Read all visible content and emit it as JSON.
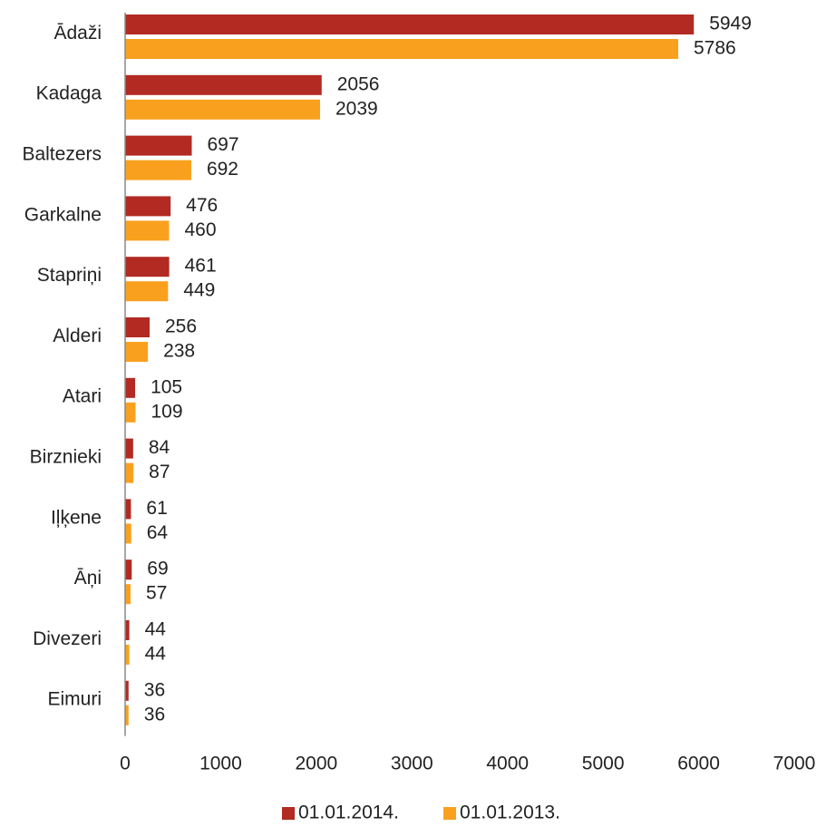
{
  "chart_data": {
    "type": "bar",
    "orientation": "horizontal",
    "categories": [
      "Ādaži",
      "Kadaga",
      "Baltezers",
      "Garkalne",
      "Stapriņi",
      "Alderi",
      "Atari",
      "Birznieki",
      "Iļķene",
      "Āņi",
      "Divezeri",
      "Eimuri"
    ],
    "series": [
      {
        "name": "01.01.2014.",
        "color": "#b22a22",
        "values": [
          5949,
          2056,
          697,
          476,
          461,
          256,
          105,
          84,
          61,
          69,
          44,
          36
        ]
      },
      {
        "name": "01.01.2013.",
        "color": "#f9a11f",
        "values": [
          5786,
          2039,
          692,
          460,
          449,
          238,
          109,
          87,
          64,
          57,
          44,
          36
        ]
      }
    ],
    "xlim": [
      0,
      7000
    ],
    "xticks": [
      0,
      1000,
      2000,
      3000,
      4000,
      5000,
      6000,
      7000
    ],
    "grid": false,
    "legend_position": "bottom",
    "data_labels": true
  }
}
